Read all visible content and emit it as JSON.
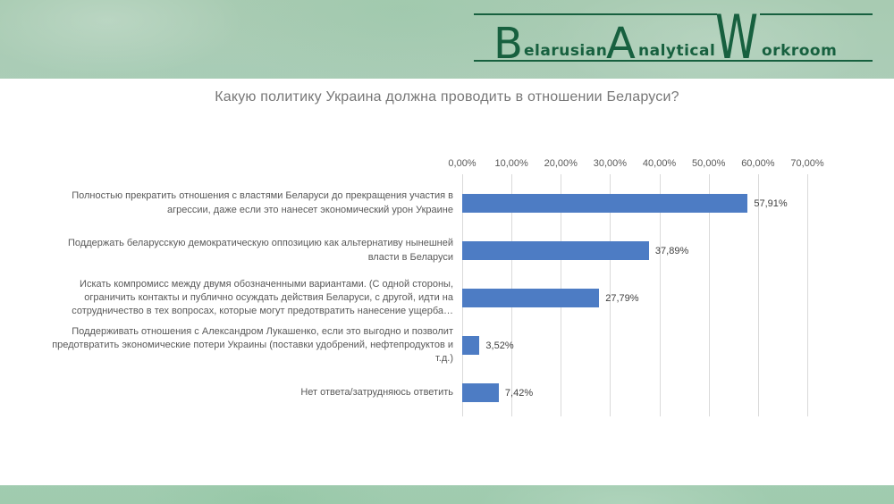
{
  "logo": {
    "word1_initial": "B",
    "word1_rest": "elarusian",
    "word2_initial": "A",
    "word2_rest": "nalytical",
    "word3_initial": "W",
    "word3_rest": "orkroom"
  },
  "colors": {
    "bar": "#4d7cc4",
    "logo_green": "#17603f",
    "background_green": "#aecfbb",
    "title_gray": "#777777"
  },
  "chart_data": {
    "type": "bar",
    "orientation": "horizontal",
    "title": "Какую политику Украина должна проводить в отношении Беларуси?",
    "categories": [
      "Полностью прекратить отношения с властями Беларуси до прекращения участия в агрессии, даже если это нанесет экономический урон Украине",
      "Поддержать беларусскую демократическую оппозицию как альтернативу нынешней власти в Беларуси",
      "Искать компромисс между двумя обозначенными вариантами. (С одной стороны, ограничить контакты и публично осуждать действия Беларуси, с другой, идти на сотрудничество в тех вопросах, которые могут предотвратить нанесение ущерба…",
      "Поддерживать отношения с Александром Лукашенко, если это выгодно и позволит предотвратить экономические потери Украины (поставки удобрений, нефтепродуктов и т.д.)",
      "Нет ответа/затрудняюсь ответить"
    ],
    "values": [
      57.91,
      37.89,
      27.79,
      3.52,
      7.42
    ],
    "value_labels": [
      "57,91%",
      "37,89%",
      "27,79%",
      "3,52%",
      "7,42%"
    ],
    "x_ticks": [
      "0,00%",
      "10,00%",
      "20,00%",
      "30,00%",
      "40,00%",
      "50,00%",
      "60,00%",
      "70,00%"
    ],
    "xlim": [
      0,
      70
    ],
    "grid": true,
    "axis_position": "top",
    "legend": "none"
  }
}
